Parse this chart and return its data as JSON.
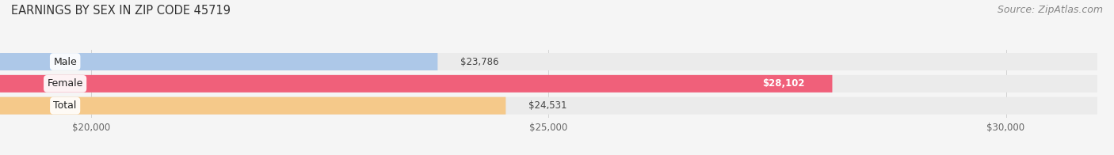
{
  "title": "EARNINGS BY SEX IN ZIP CODE 45719",
  "source": "Source: ZipAtlas.com",
  "categories": [
    "Male",
    "Female",
    "Total"
  ],
  "values": [
    23786,
    28102,
    24531
  ],
  "bar_colors": [
    "#adc8e8",
    "#f0607a",
    "#f5c98a"
  ],
  "bar_bg_color": "#ebebeb",
  "value_labels": [
    "$23,786",
    "$28,102",
    "$24,531"
  ],
  "value_label_colors": [
    "#444444",
    "#ffffff",
    "#444444"
  ],
  "xmin": 19000,
  "xmax": 31000,
  "xticks": [
    20000,
    25000,
    30000
  ],
  "xtick_labels": [
    "$20,000",
    "$25,000",
    "$30,000"
  ],
  "figsize": [
    14.06,
    1.96
  ],
  "dpi": 100,
  "bg_color": "#f5f5f5",
  "bar_height": 0.52,
  "title_fontsize": 10.5,
  "source_fontsize": 9,
  "label_fontsize": 9,
  "value_fontsize": 8.5,
  "tick_fontsize": 8.5
}
